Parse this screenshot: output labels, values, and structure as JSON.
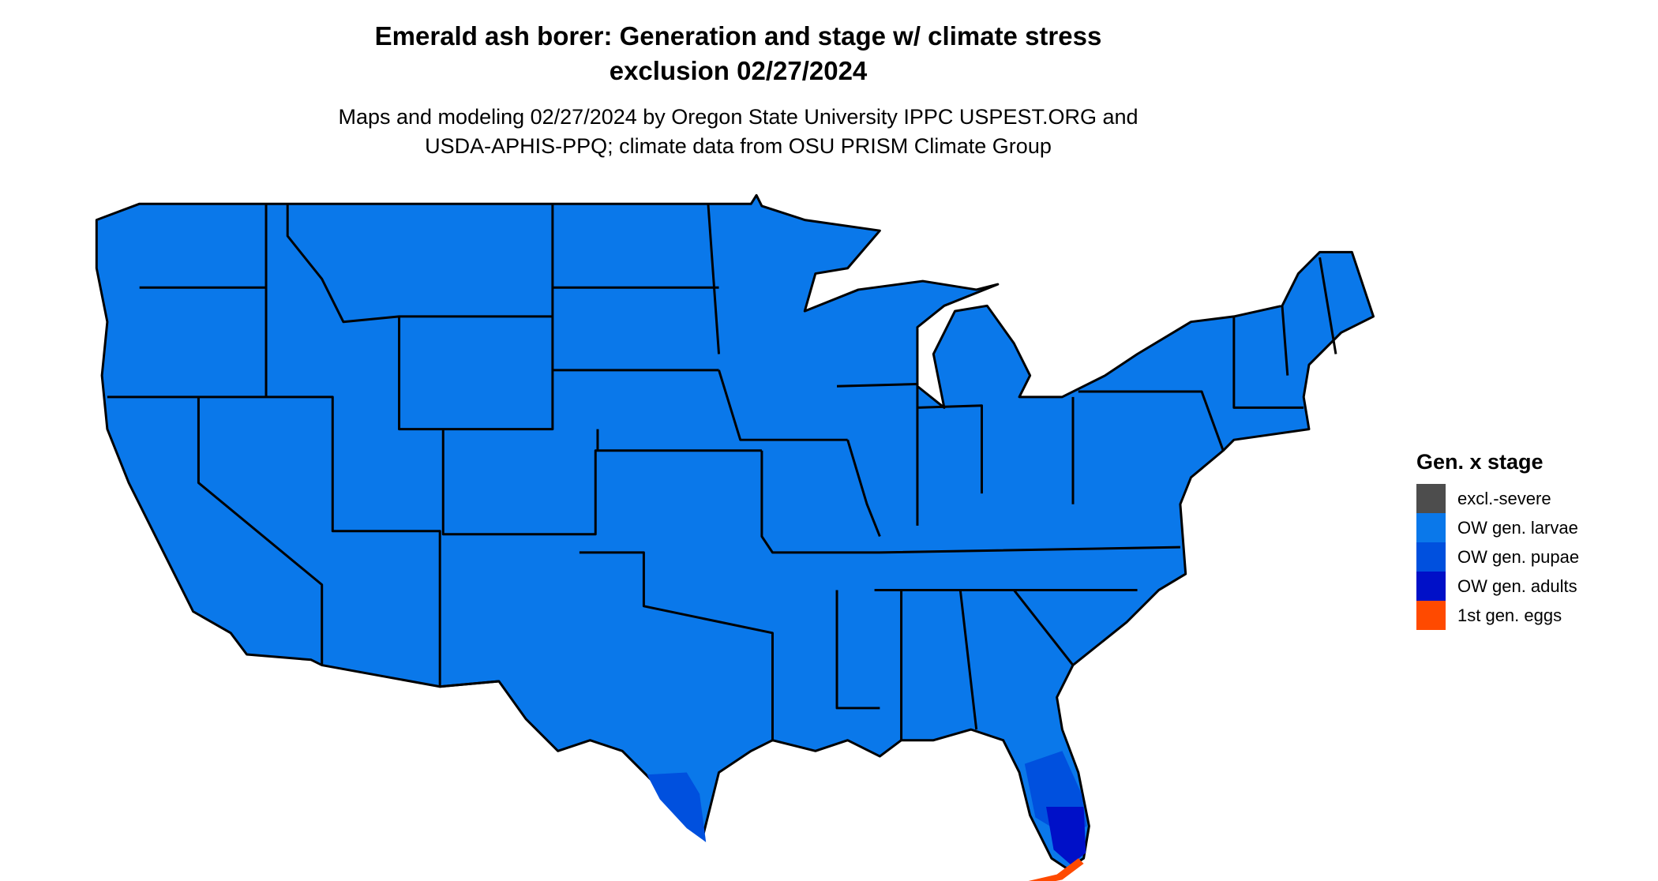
{
  "header": {
    "title": [
      "Emerald ash borer: Generation and stage w/ climate stress",
      "exclusion 02/27/2024"
    ],
    "subtitle": [
      "Maps and modeling 02/27/2024 by Oregon State University IPPC USPEST.ORG and",
      "USDA-APHIS-PPQ; climate data from OSU PRISM Climate Group"
    ]
  },
  "legend": {
    "title": "Gen. x stage",
    "items": [
      {
        "label": "excl.-severe",
        "color": "#4d4d4d"
      },
      {
        "label": "OW gen. larvae",
        "color": "#0a78ea"
      },
      {
        "label": "OW gen. pupae",
        "color": "#0050de"
      },
      {
        "label": "OW gen. adults",
        "color": "#0010c8"
      },
      {
        "label": "1st gen. eggs",
        "color": "#ff4a00"
      }
    ]
  }
}
